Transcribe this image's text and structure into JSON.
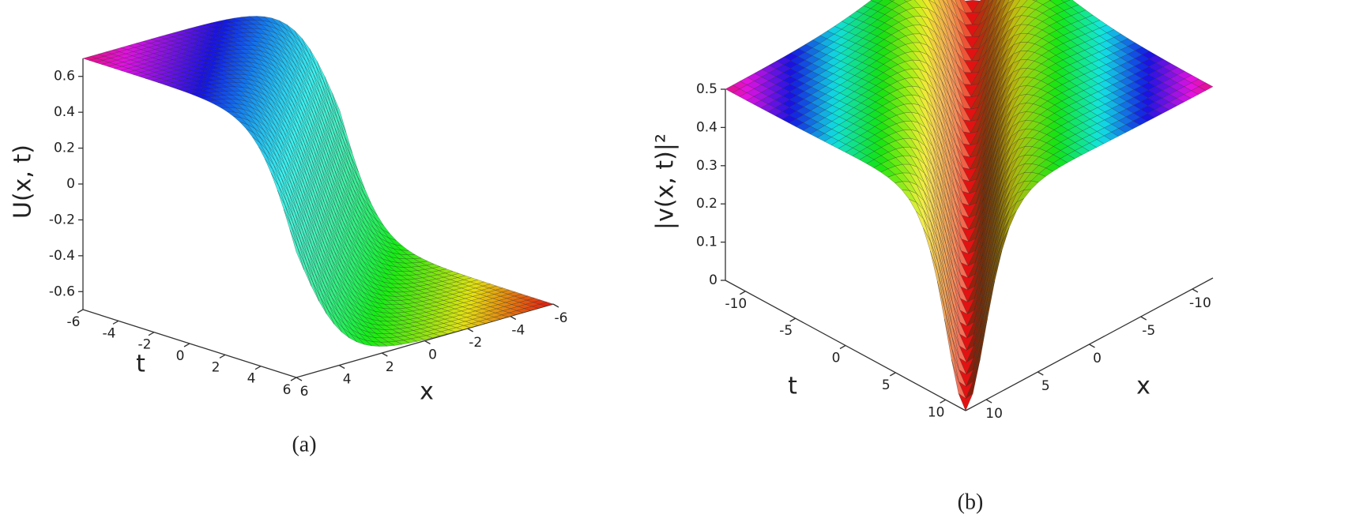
{
  "chart_data": [
    {
      "type": "surface3d",
      "caption": "(a)",
      "zlabel": "U(x, t)",
      "tlabel": "t",
      "xlabel": "x",
      "zlim": [
        -0.7,
        0.7
      ],
      "zticks": [
        -0.6,
        -0.4,
        -0.2,
        0,
        0.2,
        0.4,
        0.6
      ],
      "tlim": [
        -6,
        6
      ],
      "tticks": [
        -6,
        -4,
        -2,
        0,
        2,
        4,
        6
      ],
      "xlim": [
        -6,
        6
      ],
      "xticks": [
        -6,
        -4,
        -2,
        0,
        2,
        4,
        6
      ]
    },
    {
      "type": "surface3d",
      "caption": "(b)",
      "zlabel": "|v(x, t)|²",
      "tlabel": "t",
      "xlabel": "x",
      "zlim": [
        0,
        0.5
      ],
      "zticks": [
        0,
        0.1,
        0.2,
        0.3,
        0.4,
        0.5
      ],
      "tlim": [
        -12,
        12
      ],
      "tticks": [
        -10,
        -5,
        0,
        5,
        10
      ],
      "xlim": [
        -12,
        12
      ],
      "xticks": [
        -10,
        -5,
        0,
        5,
        10
      ]
    }
  ]
}
